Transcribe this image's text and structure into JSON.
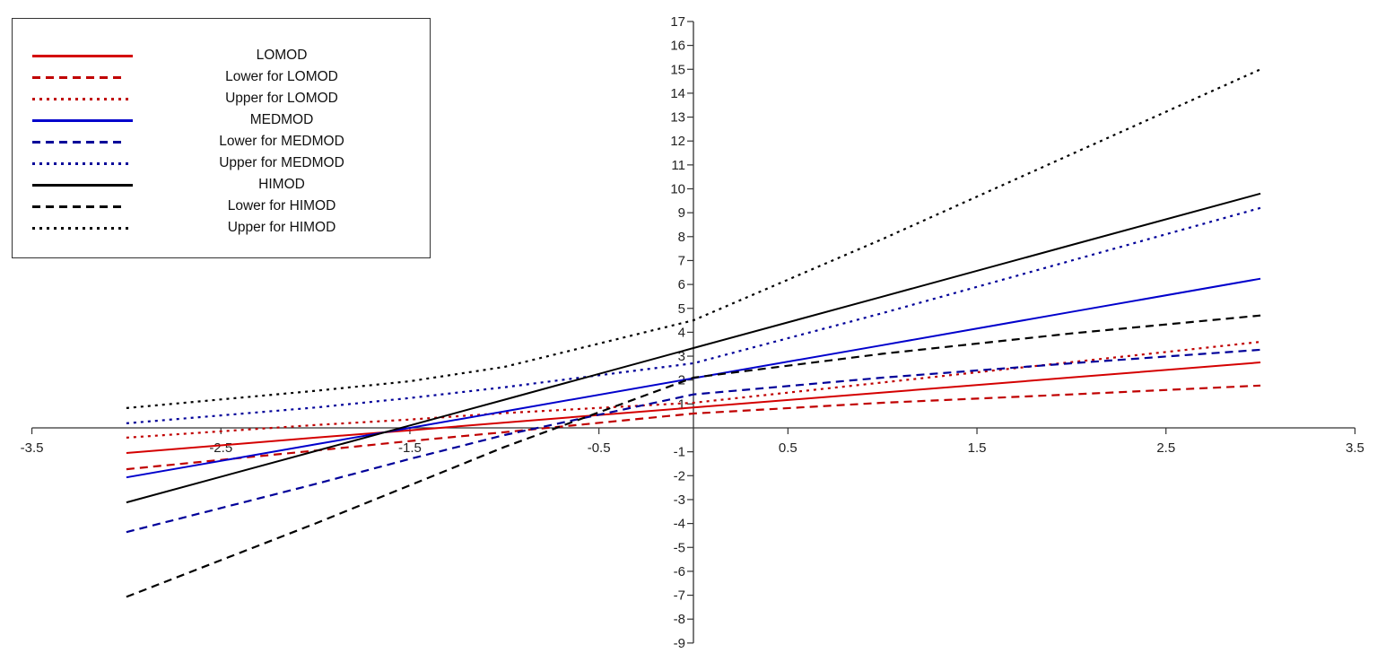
{
  "chart_data": {
    "type": "line",
    "title": "",
    "xlabel": "",
    "ylabel": "",
    "xlim": [
      -3.5,
      3.5
    ],
    "ylim": [
      -9,
      17
    ],
    "grid": false,
    "legend_position": "upper-left",
    "x_ticks": [
      "-3.5",
      "-2.5",
      "-1.5",
      "-0.5",
      "0.5",
      "1.5",
      "2.5",
      "3.5"
    ],
    "y_ticks": [
      "17",
      "16",
      "15",
      "14",
      "13",
      "12",
      "11",
      "10",
      "9",
      "8",
      "7",
      "6",
      "5",
      "4",
      "3",
      "2",
      "1",
      "-1",
      "-2",
      "-3",
      "-4",
      "-5",
      "-6",
      "-7",
      "-8",
      "-9"
    ],
    "x": [
      -3,
      -2,
      -1.5,
      -1,
      0,
      1,
      2,
      3
    ],
    "series": [
      {
        "name": "LOMOD",
        "color": "#d40000",
        "style": "solid",
        "values": [
          -1.05,
          -0.41,
          -0.1,
          0.22,
          0.85,
          1.48,
          2.11,
          2.74
        ]
      },
      {
        "name": "Lower for LOMOD",
        "color": "#c00000",
        "style": "dashed",
        "values": [
          -1.73,
          -0.95,
          -0.55,
          -0.18,
          0.6,
          1.05,
          1.4,
          1.77
        ]
      },
      {
        "name": "Upper for LOMOD",
        "color": "#c00000",
        "style": "dotted",
        "values": [
          -0.41,
          0.12,
          0.35,
          0.62,
          1.05,
          1.9,
          2.75,
          3.6
        ]
      },
      {
        "name": "MEDMOD",
        "color": "#0000cc",
        "style": "solid",
        "values": [
          -2.07,
          -0.69,
          0.0,
          0.69,
          2.08,
          3.46,
          4.85,
          6.24
        ]
      },
      {
        "name": "Lower for MEDMOD",
        "color": "#000099",
        "style": "dashed",
        "values": [
          -4.36,
          -2.35,
          -1.3,
          -0.3,
          1.4,
          2.1,
          2.7,
          3.27
        ]
      },
      {
        "name": "Upper for MEDMOD",
        "color": "#000099",
        "style": "dotted",
        "values": [
          0.19,
          0.85,
          1.25,
          1.7,
          2.7,
          4.8,
          7.0,
          9.2
        ]
      },
      {
        "name": "HIMOD",
        "color": "#000000",
        "style": "solid",
        "values": [
          -3.12,
          -0.97,
          0.1,
          1.18,
          3.34,
          5.49,
          7.65,
          9.8
        ]
      },
      {
        "name": "Lower for HIMOD",
        "color": "#000000",
        "style": "dashed",
        "values": [
          -7.07,
          -4.0,
          -2.4,
          -0.8,
          2.1,
          3.1,
          3.95,
          4.7
        ]
      },
      {
        "name": "Upper for HIMOD",
        "color": "#000000",
        "style": "dotted",
        "values": [
          0.83,
          1.55,
          1.95,
          2.55,
          4.5,
          7.9,
          11.45,
          15.0
        ]
      }
    ]
  },
  "legend": {
    "items": [
      {
        "label": "LOMOD",
        "color": "#d40000",
        "style": "solid"
      },
      {
        "label": "Lower for LOMOD",
        "color": "#c00000",
        "style": "dashed"
      },
      {
        "label": "Upper for LOMOD",
        "color": "#c00000",
        "style": "dotted"
      },
      {
        "label": "MEDMOD",
        "color": "#0000cc",
        "style": "solid"
      },
      {
        "label": "Lower for MEDMOD",
        "color": "#000099",
        "style": "dashed"
      },
      {
        "label": "Upper for MEDMOD",
        "color": "#000099",
        "style": "dotted"
      },
      {
        "label": "HIMOD",
        "color": "#000000",
        "style": "solid"
      },
      {
        "label": "Lower for HIMOD",
        "color": "#000000",
        "style": "dashed"
      },
      {
        "label": "Upper for HIMOD",
        "color": "#000000",
        "style": "dotted"
      }
    ]
  }
}
